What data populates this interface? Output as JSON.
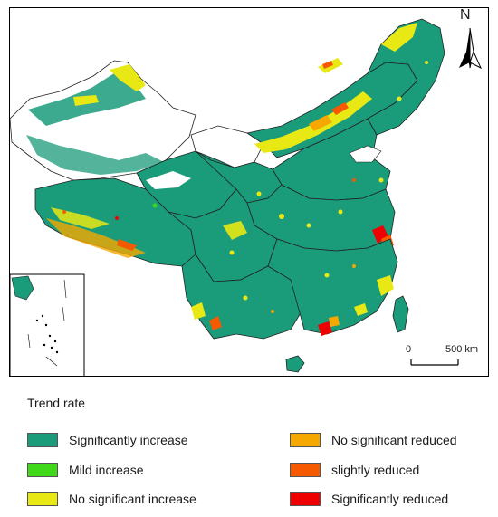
{
  "map": {
    "north_label": "N",
    "scale_start": "0",
    "scale_end": "500 km"
  },
  "legend": {
    "title": "Trend rate",
    "items": [
      {
        "label": "Significantly increase",
        "color": "#1a9b7a"
      },
      {
        "label": "Mild increase",
        "color": "#3fd91a"
      },
      {
        "label": "No significant increase",
        "color": "#e8e814"
      },
      {
        "label": "No significant reduced",
        "color": "#f5a800"
      },
      {
        "label": "slightly reduced",
        "color": "#f55a00"
      },
      {
        "label": "Significantly reduced",
        "color": "#ee0000"
      }
    ]
  }
}
